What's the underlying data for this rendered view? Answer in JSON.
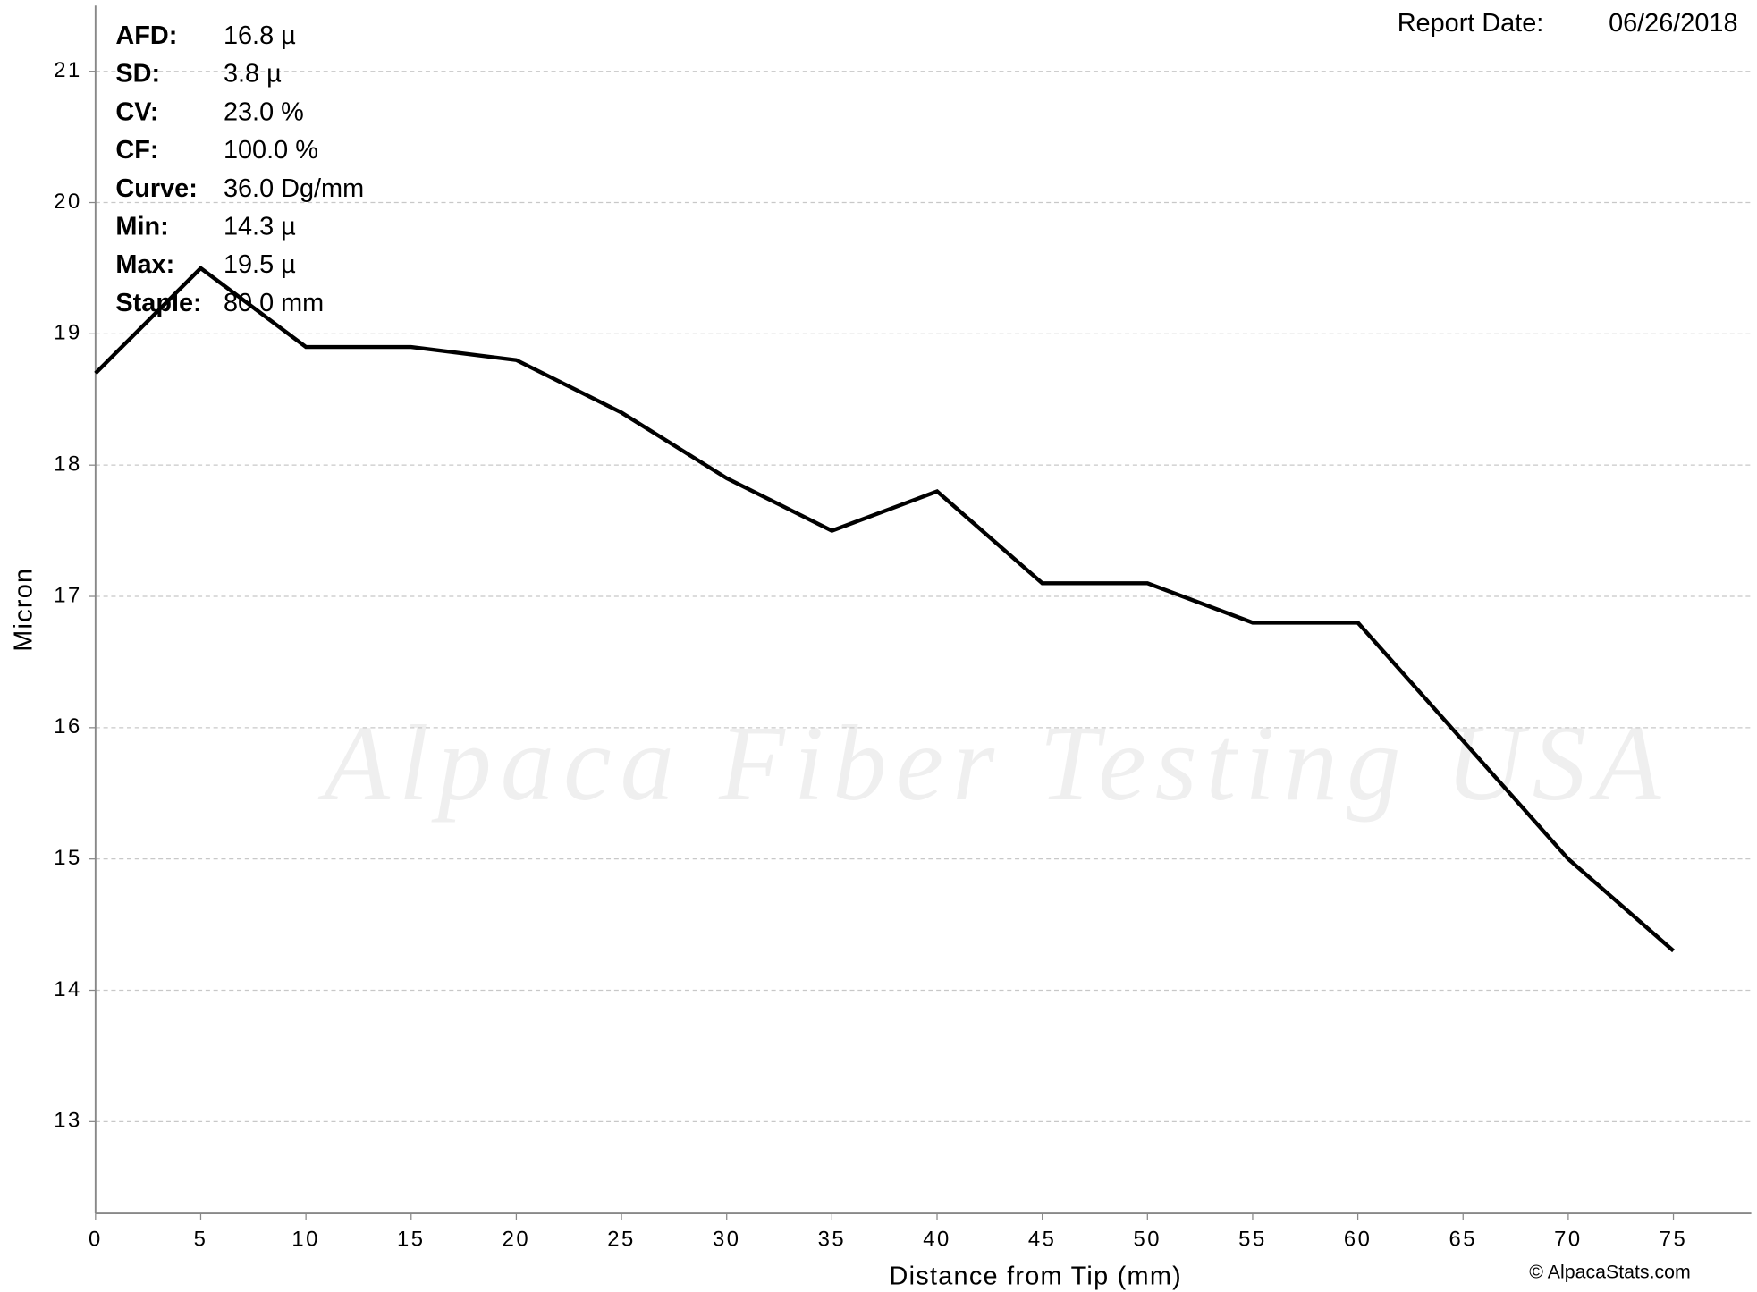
{
  "watermark": "Alpaca Fiber Testing USA",
  "report_date_label": "Report Date:",
  "report_date": "06/26/2018",
  "credit": "© AlpacaStats.com",
  "stats": [
    {
      "label": "AFD:",
      "value": "16.8 µ"
    },
    {
      "label": "SD:",
      "value": "3.8 µ"
    },
    {
      "label": "CV:",
      "value": "23.0 %"
    },
    {
      "label": "CF:",
      "value": "100.0 %"
    },
    {
      "label": "Curve:",
      "value": "36.0 Dg/mm"
    },
    {
      "label": "Min:",
      "value": "14.3 µ"
    },
    {
      "label": "Max:",
      "value": "19.5 µ"
    },
    {
      "label": "Staple:",
      "value": "80.0 mm"
    }
  ],
  "chart_data": {
    "type": "line",
    "x_label": "Distance from Tip (mm)",
    "y_label": "Micron",
    "x": [
      0,
      5,
      10,
      15,
      20,
      25,
      30,
      35,
      40,
      45,
      50,
      55,
      60,
      65,
      70,
      75
    ],
    "values": [
      18.7,
      19.5,
      18.9,
      18.9,
      18.8,
      18.4,
      17.9,
      17.5,
      17.8,
      17.1,
      17.1,
      16.8,
      16.8,
      15.9,
      15.0,
      14.3
    ],
    "color": "#000000",
    "xlim": [
      0,
      78.7
    ],
    "ylim": [
      12.3,
      21.5
    ],
    "xticks": [
      0,
      5,
      10,
      15,
      20,
      25,
      30,
      35,
      40,
      45,
      50,
      55,
      60,
      65,
      70,
      75
    ],
    "yticks": [
      13,
      14,
      15,
      16,
      17,
      18,
      19,
      20,
      21
    ],
    "grid": true
  }
}
